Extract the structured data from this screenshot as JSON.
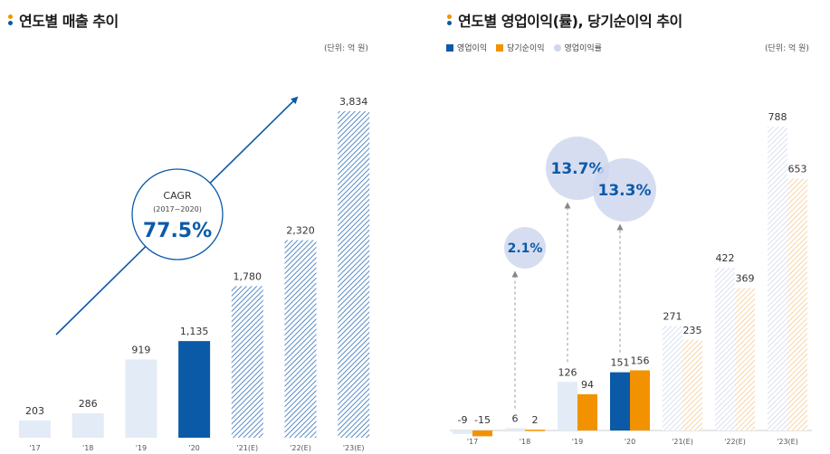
{
  "colors": {
    "light_bar": "#e3ebf6",
    "navy": "#0b5aa8",
    "hatch_blue": "#2d6fb7",
    "orange": "#f39200",
    "light_orange": "#f7c98e",
    "bubble": "#cfd7ee",
    "bubble_text": "#0b5aa8"
  },
  "left": {
    "title": "연도별 매출 추이",
    "unit": "(단위: 억 원)",
    "cagr": {
      "label": "CAGR",
      "period": "(2017~2020)",
      "value": "77.5%"
    }
  },
  "right": {
    "title": "연도별 영업이익(률), 당기순이익 추이",
    "unit": "(단위: 억 원)",
    "legend": [
      "영업이익",
      "당기순이익",
      "영업이익률"
    ]
  },
  "chart_data": [
    {
      "type": "bar",
      "title": "연도별 매출 추이",
      "categories": [
        "'17",
        "'18",
        "'19",
        "'20",
        "'21(E)",
        "'22(E)",
        "'23(E)"
      ],
      "values": [
        203,
        286,
        919,
        1135,
        1780,
        2320,
        3834
      ],
      "labels": [
        "203",
        "286",
        "919",
        "1,135",
        "1,780",
        "2,320",
        "3,834"
      ],
      "styles": [
        "actual",
        "actual",
        "actual",
        "highlight",
        "estimate",
        "estimate",
        "estimate"
      ],
      "ylim": [
        0,
        3834
      ],
      "annotation": "CAGR (2017~2020) 77.5%"
    },
    {
      "type": "bar",
      "title": "연도별 영업이익(률), 당기순이익 추이",
      "categories": [
        "'17",
        "'18",
        "'19",
        "'20",
        "'21(E)",
        "'22(E)",
        "'23(E)"
      ],
      "series": [
        {
          "name": "영업이익",
          "values": [
            -9,
            6,
            126,
            151,
            271,
            422,
            788
          ],
          "labels": [
            "-9",
            "6",
            "126",
            "151",
            "271",
            "422",
            "788"
          ]
        },
        {
          "name": "당기순이익",
          "values": [
            -15,
            2,
            94,
            156,
            235,
            369,
            653
          ],
          "labels": [
            "-15",
            "2",
            "94",
            "156",
            "235",
            "369",
            "653"
          ]
        },
        {
          "name": "영업이익률",
          "values": [
            null,
            2.1,
            13.7,
            13.3,
            null,
            null,
            null
          ],
          "labels": [
            "",
            "2.1%",
            "13.7%",
            "13.3%",
            "",
            "",
            ""
          ],
          "unit": "%"
        }
      ],
      "ylim": [
        -15,
        788
      ]
    }
  ]
}
